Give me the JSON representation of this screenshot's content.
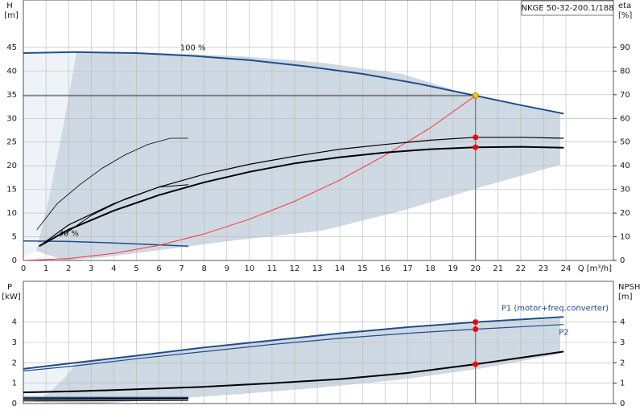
{
  "chart_data": [
    {
      "type": "line",
      "title": "NKGE 50-32-200.1/188",
      "xlabel": "Q [m³/h]",
      "ylabel": "H",
      "yunit": "[m]",
      "y2label": "eta",
      "y2unit": "[%]",
      "xlim": [
        0,
        26.1
      ],
      "xticks": [
        0,
        1,
        2,
        3,
        4,
        5,
        6,
        7,
        8,
        9,
        10,
        11,
        12,
        13,
        14,
        15,
        16,
        17,
        18,
        19,
        20,
        21,
        22,
        23,
        24
      ],
      "ylim": [
        0,
        55
      ],
      "yticks": [
        0,
        5,
        10,
        15,
        20,
        25,
        30,
        35,
        40,
        45
      ],
      "y2lim": [
        0,
        110
      ],
      "y2ticks": [
        0,
        10,
        20,
        30,
        40,
        50,
        60,
        70,
        80,
        90
      ],
      "grid": true,
      "operating_q": 20,
      "operating_h": 34.8,
      "series": [
        {
          "name": "100 %",
          "color": "#1f4e8c",
          "width": 2,
          "label": "mid",
          "marker": "#ffd700",
          "x": [
            0,
            2.3,
            5,
            7.5,
            10,
            12.5,
            15,
            17.5,
            20,
            22,
            23.9
          ],
          "values": [
            43.8,
            44,
            43.8,
            43.2,
            42.3,
            41,
            39.4,
            37.3,
            34.8,
            32.8,
            31
          ]
        },
        {
          "name": "30 %",
          "color": "#1f4e8c",
          "width": 1.5,
          "label": "mid",
          "x": [
            0,
            2,
            4,
            6,
            7.3
          ],
          "values": [
            4.1,
            4,
            3.7,
            3.3,
            3
          ]
        },
        {
          "color": "#ff3333",
          "width": 1,
          "x": [
            0,
            2,
            4,
            6,
            8,
            10,
            12,
            14,
            16,
            18,
            20
          ],
          "values": [
            0,
            0.4,
            1.5,
            3.2,
            5.6,
            8.7,
            12.5,
            17,
            22.2,
            28,
            34.8
          ]
        },
        {
          "color": "#000000",
          "width": 2,
          "axis": "y2",
          "marker": "#ff0000",
          "x": [
            0.7,
            2,
            4,
            6,
            8,
            10,
            12,
            14,
            16,
            18,
            20,
            22,
            23.9
          ],
          "values": [
            6,
            13,
            21,
            27.6,
            33,
            37.4,
            41,
            43.6,
            45.6,
            47,
            47.8,
            48,
            47.6
          ]
        },
        {
          "color": "#000000",
          "width": 1.2,
          "axis": "y2",
          "marker": "#ff0000",
          "x": [
            0.7,
            2,
            4,
            6,
            8,
            10,
            12,
            14,
            16,
            18,
            20,
            22,
            23.9
          ],
          "values": [
            6,
            15,
            24,
            31,
            36.4,
            40.6,
            44,
            47,
            49,
            50.8,
            52,
            52,
            51.6
          ]
        },
        {
          "color": "#000000",
          "width": 0.8,
          "axis": "y2",
          "x": [
            0.6,
            1.5,
            2.5,
            3.5,
            4.5,
            5.5,
            6.5,
            7.3
          ],
          "values": [
            13,
            24,
            32,
            39,
            44.6,
            49,
            51.6,
            51.6
          ]
        },
        {
          "color": "#000000",
          "width": 1,
          "axis": "y2",
          "x": [
            1.8,
            3,
            4.5,
            6,
            7.3
          ],
          "values": [
            11,
            19,
            26,
            31,
            32
          ]
        }
      ]
    },
    {
      "type": "line",
      "ylabel": "P",
      "yunit": "[kW]",
      "y2label": "NPSH",
      "y2unit": "[m]",
      "xlim": [
        0,
        26.1
      ],
      "xticks": [
        0,
        1,
        2,
        3,
        4,
        5,
        6,
        7,
        8,
        9,
        10,
        11,
        12,
        13,
        14,
        15,
        16,
        17,
        18,
        19,
        20,
        21,
        22,
        23,
        24
      ],
      "ylim": [
        0,
        6
      ],
      "yticks": [
        0,
        1,
        2,
        3,
        4
      ],
      "y2lim": [
        0,
        6
      ],
      "y2ticks": [
        0,
        1,
        2,
        3,
        4
      ],
      "grid": true,
      "operating_q": 20,
      "series": [
        {
          "name": "P1 (motor+freq.converter)",
          "color": "#1f4e8c",
          "width": 2,
          "label": "end-above",
          "marker": "#ff0000",
          "x": [
            0,
            2.3,
            5,
            8,
            11,
            14,
            17,
            20,
            23.9
          ],
          "values": [
            1.7,
            2,
            2.35,
            2.75,
            3.1,
            3.45,
            3.75,
            4,
            4.25
          ]
        },
        {
          "name": "P2",
          "color": "#1f4e8c",
          "width": 1.2,
          "label": "end-below",
          "marker": "#ff0000",
          "x": [
            0,
            2.3,
            5,
            8,
            11,
            14,
            17,
            20,
            23.9
          ],
          "values": [
            1.6,
            1.85,
            2.2,
            2.55,
            2.9,
            3.2,
            3.45,
            3.65,
            3.88
          ]
        },
        {
          "color": "#000000",
          "width": 2,
          "axis": "y2",
          "marker": "#ff0000",
          "x": [
            0,
            2.3,
            5,
            8,
            11,
            14,
            17,
            20,
            23.9
          ],
          "values": [
            0.55,
            0.6,
            0.7,
            0.82,
            1,
            1.2,
            1.5,
            1.93,
            2.55
          ]
        },
        {
          "color": "#1f4e8c",
          "width": 1.5,
          "x": [
            0,
            7.3
          ],
          "values": [
            0.3,
            0.3
          ]
        },
        {
          "color": "#000000",
          "width": 2,
          "x": [
            0,
            7.3
          ],
          "values": [
            0.22,
            0.24
          ]
        },
        {
          "color": "#000000",
          "width": 1,
          "axis": "y2",
          "x": [
            0,
            7.3
          ],
          "values": [
            0.13,
            0.15
          ]
        }
      ]
    }
  ]
}
